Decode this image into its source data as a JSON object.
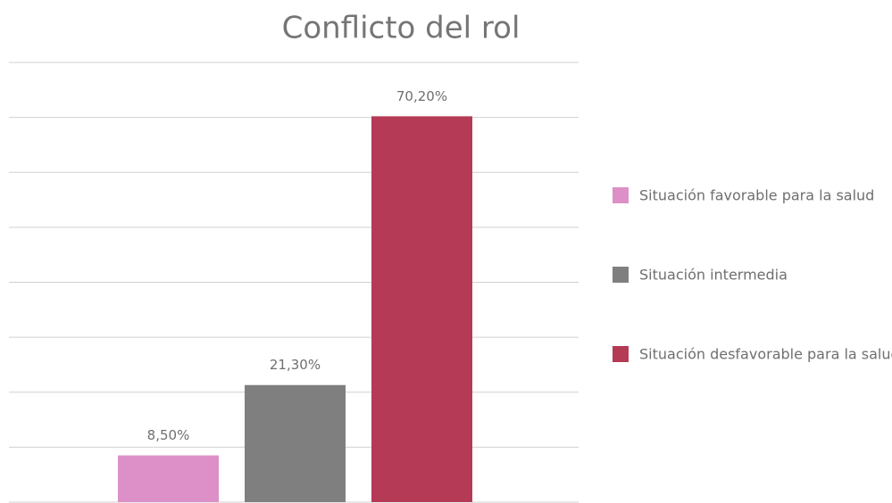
{
  "chart_data": {
    "type": "bar",
    "title": "Conflicto del rol",
    "series": [
      {
        "name": "Situación favorable para la salud",
        "color": "#dd90c8",
        "values": [
          8.5
        ],
        "value_labels": [
          "8,50%"
        ]
      },
      {
        "name": "Situación intermedia",
        "color": "#7f7f7f",
        "values": [
          21.3
        ],
        "value_labels": [
          "21,30%"
        ]
      },
      {
        "name": "Situación desfavorable para la salud",
        "color": "#b53a55",
        "values": [
          70.2
        ],
        "value_labels": [
          "70,20%"
        ]
      }
    ],
    "ylim": [
      0,
      80
    ],
    "yticks": [
      0,
      10,
      20,
      30,
      40,
      50,
      60,
      70,
      80
    ],
    "grid": true,
    "legend": "right"
  }
}
